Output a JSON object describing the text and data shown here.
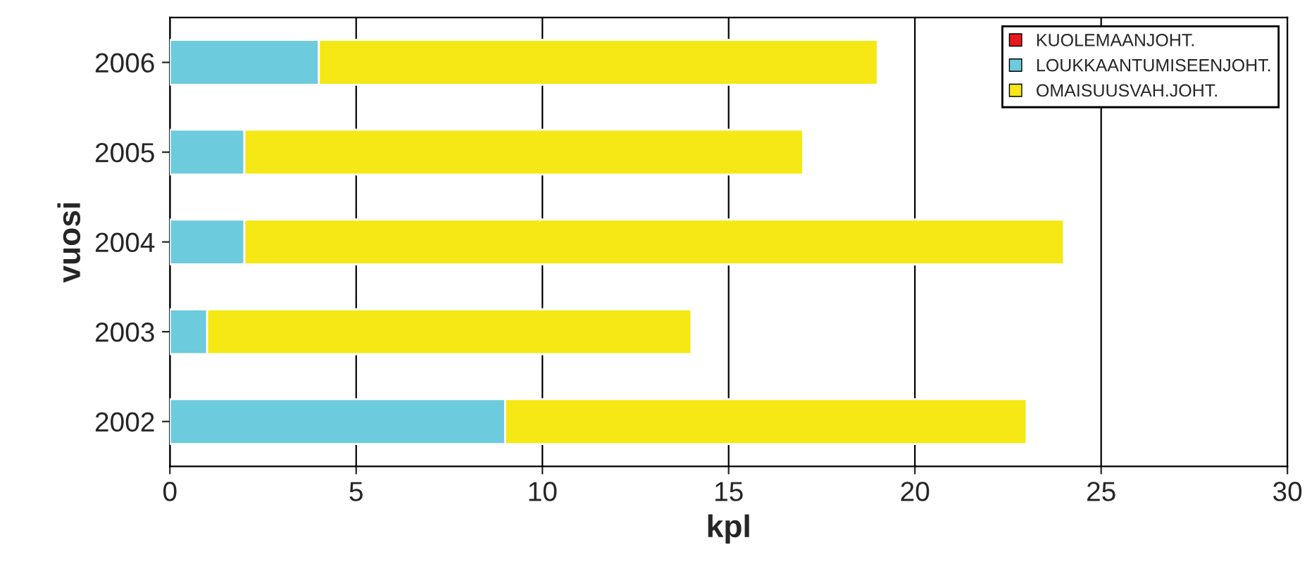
{
  "chart_data": {
    "type": "bar",
    "orientation": "horizontal",
    "stacked": true,
    "categories": [
      "2006",
      "2005",
      "2004",
      "2003",
      "2002"
    ],
    "series": [
      {
        "name": "KUOLEMAANJOHT.",
        "color": "#e8191e",
        "values": [
          0,
          0,
          0,
          0,
          0
        ]
      },
      {
        "name": "LOUKKAANTUMISEENJOHT.",
        "color": "#6ccbdc",
        "values": [
          4,
          2,
          2,
          1,
          9
        ]
      },
      {
        "name": "OMAISUUSVAH.JOHT.",
        "color": "#f5e814",
        "values": [
          15,
          15,
          22,
          13,
          14
        ]
      }
    ],
    "xlabel": "kpl",
    "ylabel": "vuosi",
    "xlim": [
      0,
      30
    ],
    "xticks": [
      0,
      5,
      10,
      15,
      20,
      25,
      30
    ],
    "grid": "x",
    "legend": "top right"
  }
}
